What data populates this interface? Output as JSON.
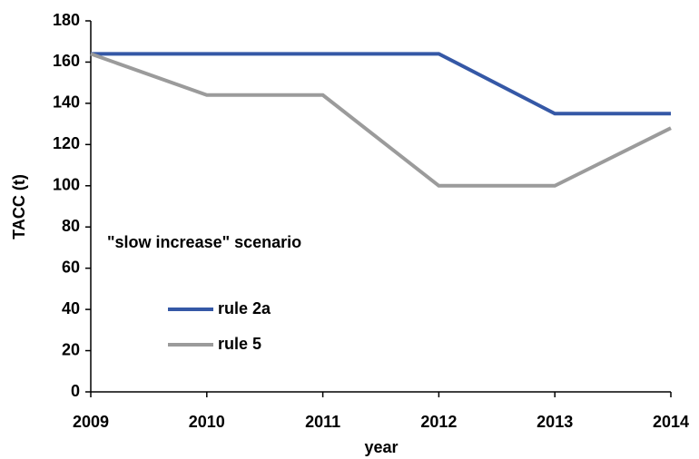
{
  "chart_data": {
    "type": "line",
    "x": [
      2009,
      2010,
      2011,
      2012,
      2013,
      2014
    ],
    "series": [
      {
        "name": "rule 2a",
        "color": "#3558a6",
        "values": [
          164,
          164,
          164,
          164,
          135,
          135
        ]
      },
      {
        "name": "rule 5",
        "color": "#9b9b9b",
        "values": [
          164,
          144,
          144,
          100,
          100,
          128
        ]
      }
    ],
    "xlim": [
      2009,
      2014
    ],
    "xticks": [
      2009,
      2010,
      2011,
      2012,
      2013,
      2014
    ],
    "ylim": [
      0,
      180
    ],
    "yticks": [
      0,
      20,
      40,
      60,
      80,
      100,
      120,
      140,
      160,
      180
    ],
    "xlabel": "year",
    "ylabel": "TACC (t)",
    "annotation": "\"slow increase\" scenario",
    "grid": false
  }
}
